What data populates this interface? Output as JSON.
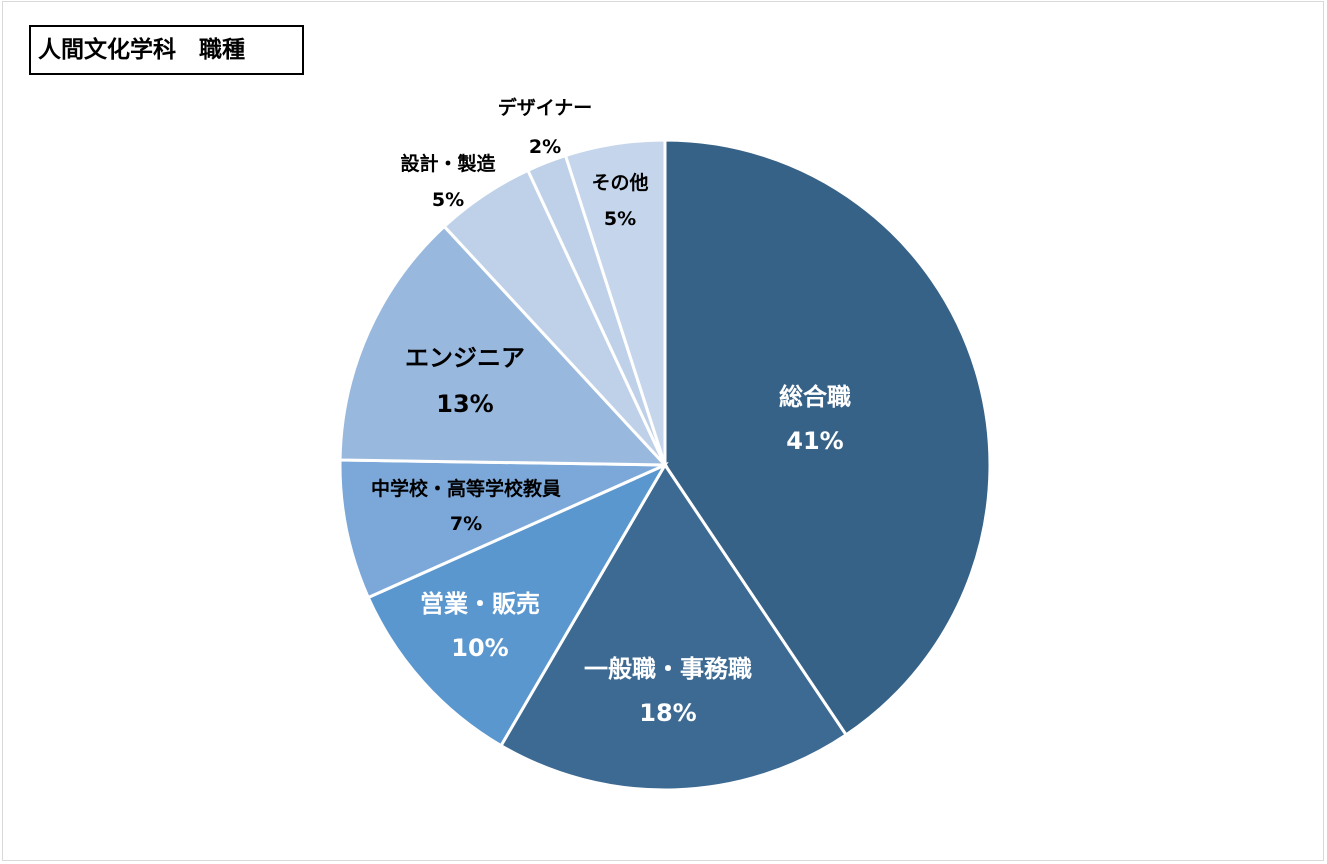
{
  "chart_data": {
    "type": "pie",
    "title": "人間文化学科　職種",
    "start": "top",
    "direction": "clockwise",
    "slices": [
      {
        "label": "総合職",
        "value": 41,
        "pct": "41%",
        "color": "#376287",
        "text_color": "#ffffff"
      },
      {
        "label": "一般職・事務職",
        "value": 18,
        "pct": "18%",
        "color": "#3d6a93",
        "text_color": "#ffffff"
      },
      {
        "label": "営業・販売",
        "value": 10,
        "pct": "10%",
        "color": "#5b97cf",
        "text_color": "#ffffff"
      },
      {
        "label": "中学校・高等学校教員",
        "value": 7,
        "pct": "7%",
        "color": "#7ba8d9",
        "text_color": "#000000"
      },
      {
        "label": "エンジニア",
        "value": 13,
        "pct": "13%",
        "color": "#99b8de",
        "text_color": "#000000"
      },
      {
        "label": "設計・製造",
        "value": 5,
        "pct": "5%",
        "color": "#bfd1e9",
        "text_color": "#000000"
      },
      {
        "label": "デザイナー",
        "value": 2,
        "pct": "2%",
        "color": "#bfd1e9",
        "text_color": "#000000"
      },
      {
        "label": "その他",
        "value": 5,
        "pct": "5%",
        "color": "#c5d5eb",
        "text_color": "#000000"
      }
    ]
  }
}
